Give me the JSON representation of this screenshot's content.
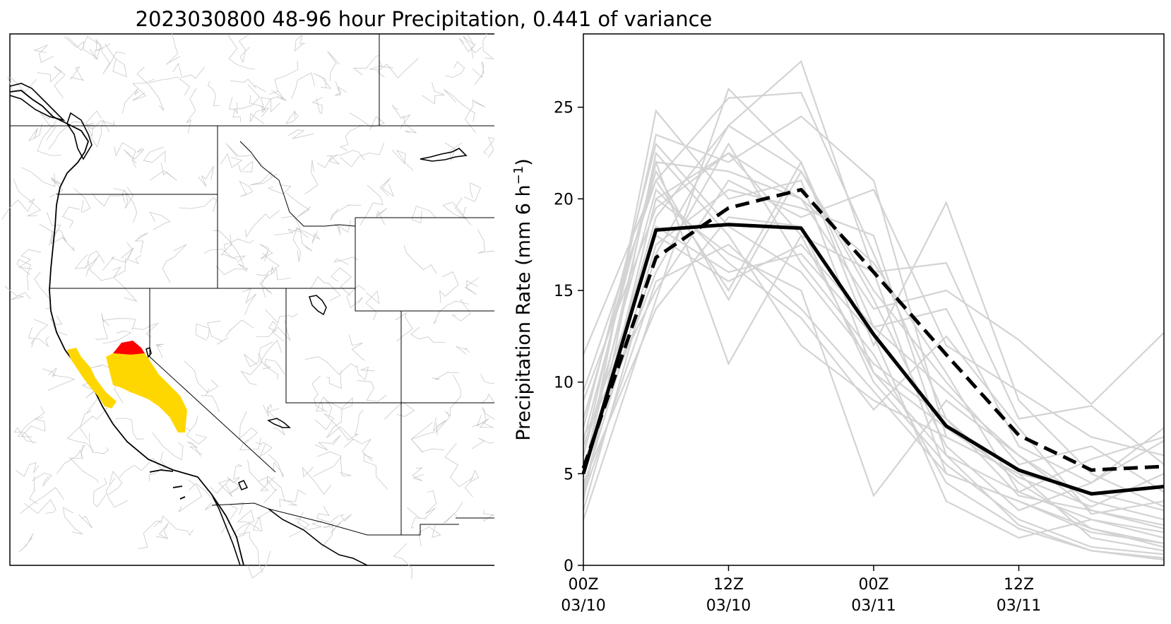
{
  "figure": {
    "title": "2023030800 48-96 hour Precipitation, 0.441 of variance"
  },
  "map_panel": {
    "colors": {
      "land_outline": "#000000",
      "state_border": "#000000",
      "watershed": "#c8c8c8",
      "highlight_yellow": "#ffd700",
      "highlight_red": "#ff0000"
    }
  },
  "chart_data": {
    "type": "line",
    "ylabel": "Precipitation Rate (mm 6 h",
    "ylabel_sup": "−1",
    "ylabel_close": ")",
    "ylim": [
      0,
      29
    ],
    "xlim": [
      0,
      24
    ],
    "yticks": [
      0,
      5,
      10,
      15,
      20,
      25
    ],
    "xticks": [
      {
        "x": 0,
        "line1": "00Z",
        "line2": "03/10"
      },
      {
        "x": 6,
        "line1": "12Z",
        "line2": "03/10"
      },
      {
        "x": 12,
        "line1": "00Z",
        "line2": "03/11"
      },
      {
        "x": 18,
        "line1": "12Z",
        "line2": "03/11"
      }
    ],
    "x": [
      0,
      3,
      6,
      9,
      12,
      15,
      18,
      21,
      24
    ],
    "grid": false,
    "legend": "none",
    "colors": {
      "member": "#d3d3d3",
      "highlight": "#000000"
    },
    "highlight_series": [
      {
        "style": "solid",
        "values": [
          5.0,
          18.3,
          18.6,
          18.4,
          12.6,
          7.6,
          5.2,
          3.9,
          4.3
        ]
      },
      {
        "style": "dashed",
        "values": [
          5.3,
          16.8,
          19.5,
          20.5,
          16.0,
          11.5,
          7.1,
          5.2,
          5.4
        ]
      }
    ],
    "ensemble_members": [
      [
        4.8,
        24.8,
        20.0,
        21.0,
        10.5,
        6.0,
        4.0,
        2.5,
        1.5
      ],
      [
        3.0,
        17.0,
        24.0,
        27.5,
        16.0,
        5.0,
        3.5,
        2.0,
        1.2
      ],
      [
        11.5,
        21.0,
        25.5,
        25.8,
        17.0,
        8.0,
        3.8,
        3.0,
        2.2
      ],
      [
        6.0,
        23.5,
        22.0,
        24.5,
        21.0,
        7.0,
        5.0,
        4.0,
        3.0
      ],
      [
        2.5,
        14.5,
        26.0,
        22.0,
        12.0,
        19.8,
        9.0,
        5.0,
        3.2
      ],
      [
        9.0,
        19.5,
        22.5,
        20.0,
        14.0,
        15.0,
        12.3,
        8.8,
        12.7
      ],
      [
        5.0,
        22.0,
        11.0,
        18.0,
        16.0,
        16.5,
        8.0,
        8.7,
        5.5
      ],
      [
        4.0,
        20.0,
        17.0,
        15.0,
        3.8,
        9.0,
        6.0,
        3.0,
        2.0
      ],
      [
        7.0,
        15.0,
        21.0,
        19.0,
        20.5,
        12.0,
        9.5,
        7.0,
        6.0
      ],
      [
        6.5,
        18.0,
        15.5,
        17.5,
        13.0,
        14.0,
        6.5,
        4.5,
        7.5
      ],
      [
        3.5,
        22.5,
        18.0,
        12.0,
        9.0,
        7.0,
        5.0,
        1.5,
        0.8
      ],
      [
        5.5,
        16.0,
        23.0,
        16.5,
        11.5,
        4.5,
        2.0,
        0.8,
        0.4
      ],
      [
        8.0,
        21.5,
        14.5,
        21.5,
        15.0,
        10.0,
        5.5,
        6.5,
        4.0
      ],
      [
        4.5,
        14.0,
        19.0,
        18.5,
        10.0,
        5.5,
        2.5,
        1.0,
        0.6
      ],
      [
        6.0,
        20.5,
        16.5,
        13.5,
        8.5,
        12.5,
        7.5,
        2.8,
        3.5
      ],
      [
        5.0,
        19.0,
        24.0,
        21.5,
        14.5,
        6.5,
        3.0,
        4.5,
        6.8
      ],
      [
        7.5,
        23.0,
        18.5,
        16.0,
        11.0,
        8.0,
        4.5,
        2.0,
        1.0
      ],
      [
        4.2,
        17.5,
        20.5,
        19.5,
        18.0,
        6.0,
        2.2,
        0.8,
        0.3
      ],
      [
        9.5,
        21.0,
        15.0,
        22.0,
        13.0,
        9.5,
        6.0,
        3.5,
        2.5
      ],
      [
        3.8,
        15.5,
        17.5,
        14.0,
        9.5,
        5.0,
        3.5,
        1.8,
        1.2
      ],
      [
        6.8,
        22.0,
        21.5,
        20.0,
        16.5,
        10.5,
        4.0,
        5.8,
        7.0
      ],
      [
        5.2,
        18.5,
        16.0,
        17.0,
        12.5,
        3.5,
        1.5,
        2.5,
        1.8
      ],
      [
        4.0,
        20.0,
        22.5,
        18.0,
        10.5,
        7.5,
        4.8,
        3.2,
        5.0
      ]
    ]
  }
}
